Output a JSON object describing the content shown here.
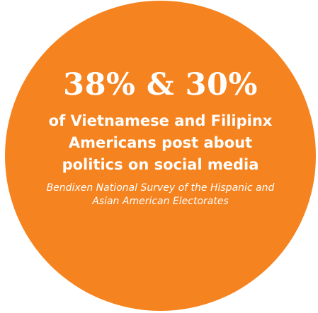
{
  "stat": {
    "headline": "38% & 30%",
    "description": "of Vietnamese and Filipinx Americans post about politics on social media",
    "source": "Bendixen National Survey of the Hispanic and Asian American Electorates"
  },
  "colors": {
    "circle": "#f5831f",
    "text": "#ffffff",
    "background": "#ffffff"
  }
}
